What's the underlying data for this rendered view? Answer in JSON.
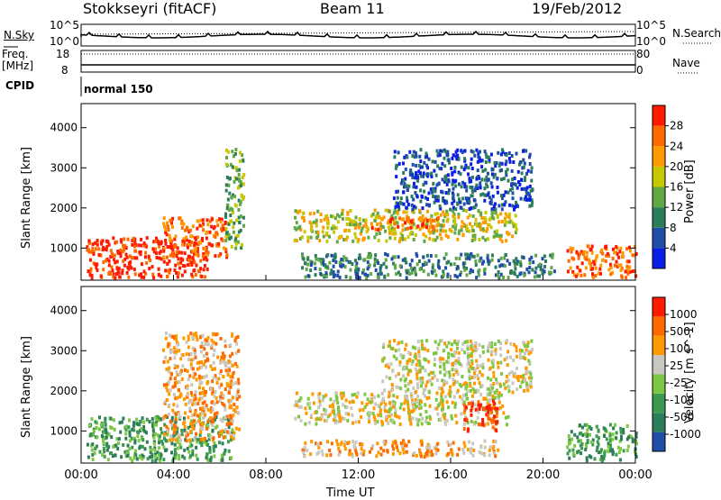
{
  "header": {
    "station": "Stokkseyri (fitACF)",
    "beam": "Beam 11",
    "date": "19/Feb/2012"
  },
  "strip_labels": {
    "nsky": "N.Sky",
    "nsky_ticks": [
      "10^5",
      "10^0"
    ],
    "nsearch": "N.Search",
    "nsearch_ticks": [
      "10^5",
      "10^0"
    ],
    "freq": "Freq.",
    "freq_unit": "[MHz]",
    "freq_ticks": [
      "18",
      "8"
    ],
    "nave": "Nave",
    "nave_ticks": [
      "80",
      "0"
    ],
    "cpid": "CPID",
    "cpid_value": "normal 150"
  },
  "chart_data": [
    {
      "type": "heatmap",
      "panel": "power",
      "ylabel": "Slant Range [km]",
      "colorbar_label": "Power [dB]",
      "colorbar_ticks": [
        "28",
        "24",
        "20",
        "16",
        "12",
        "8",
        "4"
      ],
      "colorbar_colors": [
        "#0a1ee6",
        "#1f4ea8",
        "#2e7d5a",
        "#5fa845",
        "#c8c800",
        "#ff9900",
        "#ff6a00",
        "#ff1a00"
      ],
      "yticks": [
        "4000",
        "3000",
        "2000",
        "1000"
      ],
      "ylim": [
        200,
        4600
      ],
      "xlim_hours": [
        0,
        24
      ],
      "regions": [
        {
          "t0": 0.2,
          "t1": 5.5,
          "r0": 300,
          "r1": 1300,
          "level": 7
        },
        {
          "t0": 3.5,
          "t1": 6.3,
          "r0": 800,
          "r1": 1800,
          "level": 6
        },
        {
          "t0": 6.2,
          "t1": 7.0,
          "r0": 1000,
          "r1": 3500,
          "level": 3
        },
        {
          "t0": 9.2,
          "t1": 18.8,
          "r0": 1200,
          "r1": 2000,
          "level": 4
        },
        {
          "t0": 12.5,
          "t1": 15.5,
          "r0": 1500,
          "r1": 1800,
          "level": 6
        },
        {
          "t0": 13.5,
          "t1": 19.5,
          "r0": 2000,
          "r1": 3500,
          "level": 1
        },
        {
          "t0": 21.0,
          "t1": 24.0,
          "r0": 300,
          "r1": 1100,
          "level": 6
        },
        {
          "t0": 9.5,
          "t1": 20.5,
          "r0": 300,
          "r1": 900,
          "level": 2
        }
      ]
    },
    {
      "type": "heatmap",
      "panel": "velocity",
      "ylabel": "Slant Range [km]",
      "colorbar_label": "Velocity [m s^-1]",
      "colorbar_ticks": [
        "1000",
        "500",
        "100",
        "25",
        "-25",
        "-100",
        "-500",
        "-1000"
      ],
      "colorbar_colors": [
        "#1f4ea8",
        "#2e7d5a",
        "#3c9a50",
        "#7cc843",
        "#c8c8c0",
        "#ff9900",
        "#ff6a00",
        "#ff1a00"
      ],
      "yticks": [
        "4000",
        "3000",
        "2000",
        "1000"
      ],
      "ylim": [
        200,
        4600
      ],
      "xlim_hours": [
        0,
        24
      ],
      "xticks": [
        "00:00",
        "04:00",
        "08:00",
        "12:00",
        "16:00",
        "20:00",
        "00:00"
      ],
      "xlabel": "Time UT",
      "regions": [
        {
          "t0": 0.2,
          "t1": 6.5,
          "r0": 300,
          "r1": 1400,
          "level": 2
        },
        {
          "t0": 3.5,
          "t1": 6.8,
          "r0": 800,
          "r1": 3500,
          "level": 5
        },
        {
          "t0": 9.2,
          "t1": 18.5,
          "r0": 1200,
          "r1": 2000,
          "level": 4
        },
        {
          "t0": 16.5,
          "t1": 18.0,
          "r0": 1000,
          "r1": 1800,
          "level": 7
        },
        {
          "t0": 13.0,
          "t1": 19.5,
          "r0": 2000,
          "r1": 3300,
          "level": 4
        },
        {
          "t0": 9.5,
          "t1": 18.0,
          "r0": 400,
          "r1": 800,
          "level": 5
        },
        {
          "t0": 21.0,
          "t1": 24.0,
          "r0": 300,
          "r1": 1200,
          "level": 2
        }
      ]
    }
  ]
}
